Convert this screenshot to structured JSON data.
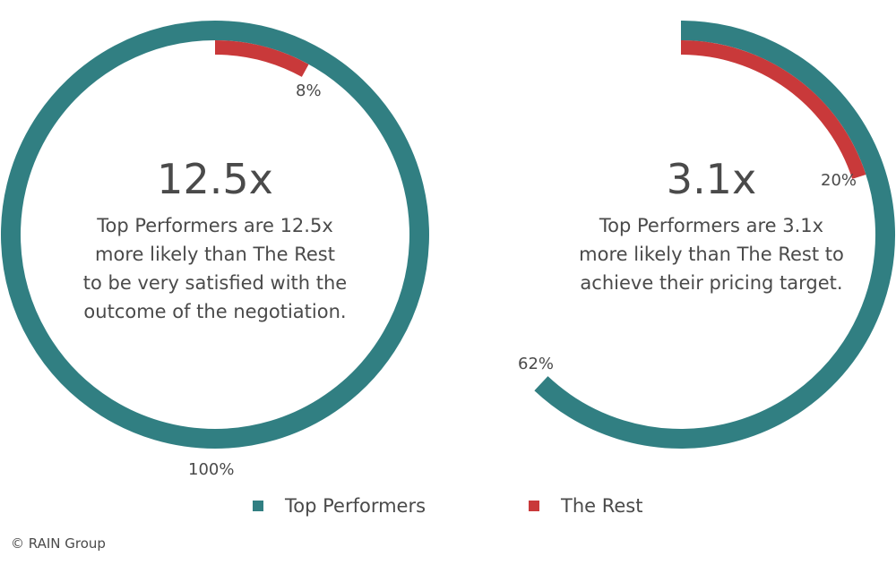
{
  "colors": {
    "top": "#317f82",
    "rest": "#c9393a"
  },
  "chart_data": [
    {
      "type": "donut",
      "headline": "12.5x",
      "description_lines": [
        "Top Performers are 12.5x",
        "more likely than The Rest",
        "to be very satisfied with the",
        "outcome of the negotiation."
      ],
      "series": [
        {
          "name": "Top Performers",
          "value": 100,
          "label": "100%"
        },
        {
          "name": "The Rest",
          "value": 8,
          "label": "8%"
        }
      ]
    },
    {
      "type": "donut",
      "headline": "3.1x",
      "description_lines": [
        "Top Performers are 3.1x",
        "more likely than The Rest to",
        "achieve their pricing target."
      ],
      "series": [
        {
          "name": "Top Performers",
          "value": 62,
          "label": "62%"
        },
        {
          "name": "The Rest",
          "value": 20,
          "label": "20%"
        }
      ]
    }
  ],
  "legend": [
    {
      "label": "Top Performers",
      "color": "#317f82"
    },
    {
      "label": "The Rest",
      "color": "#c9393a"
    }
  ],
  "credit": "© RAIN Group"
}
